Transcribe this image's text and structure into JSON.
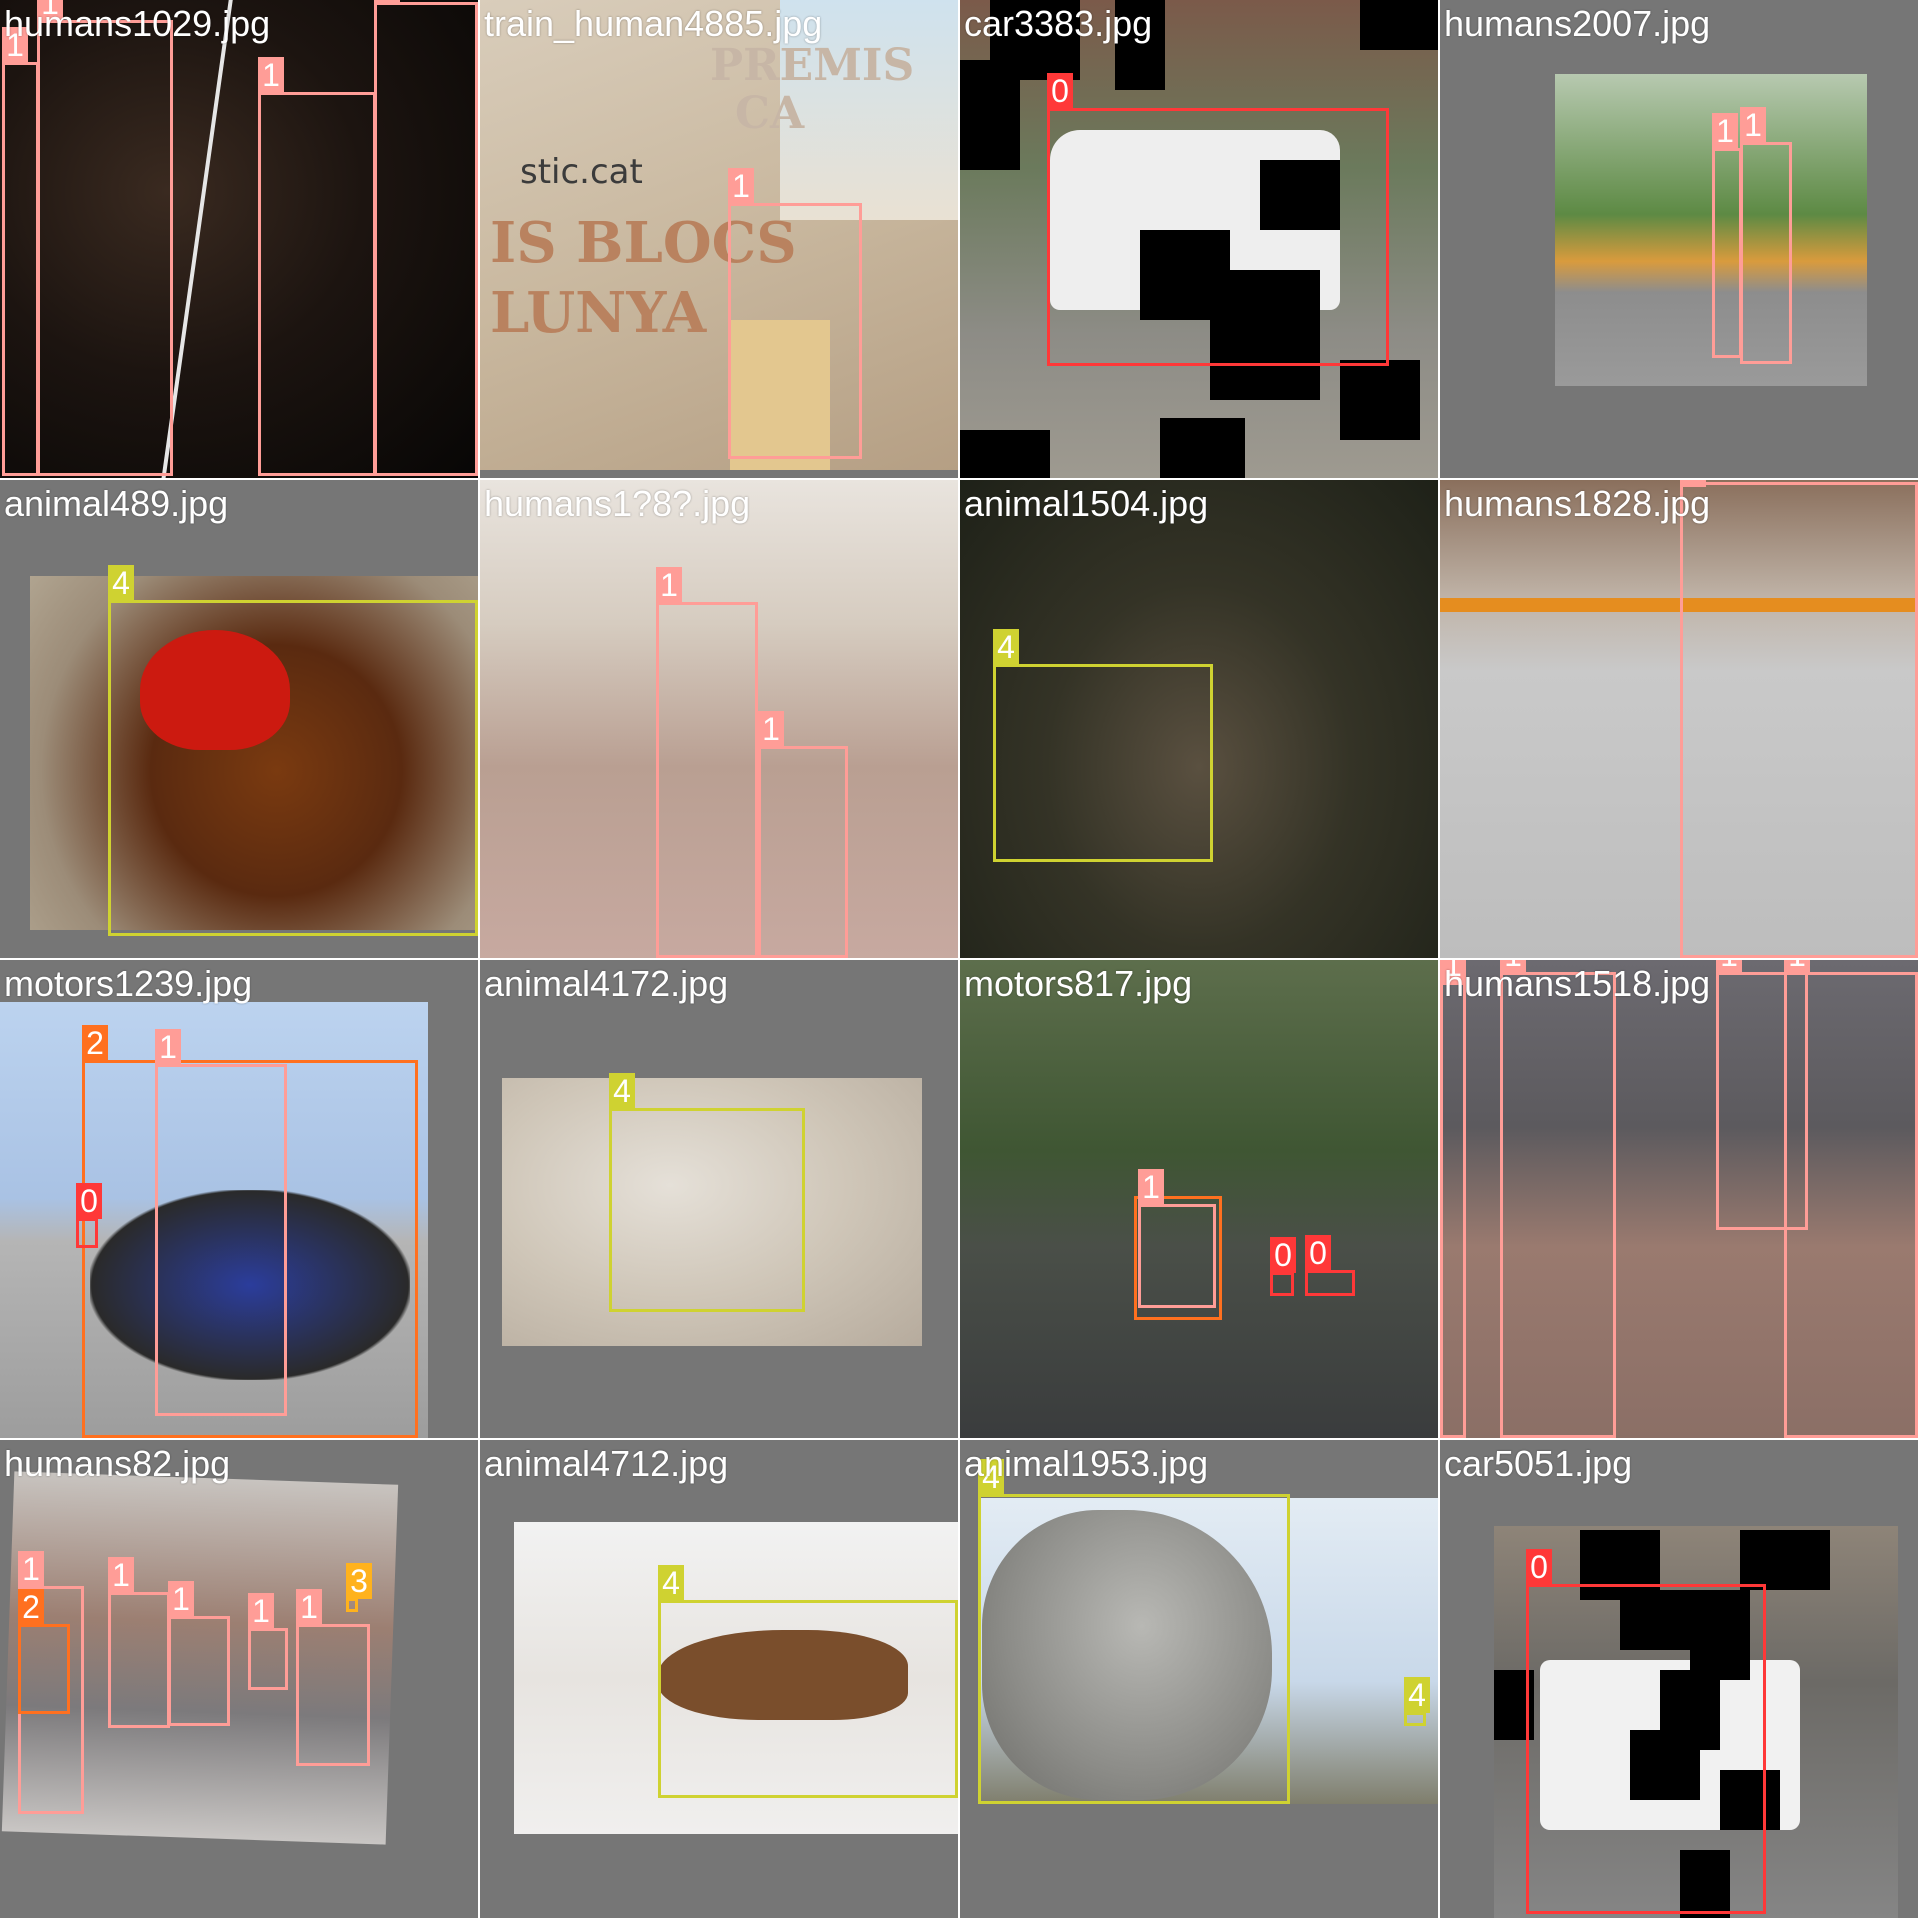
{
  "class_colors": {
    "0": "#ff3838",
    "1": "#ff9d97",
    "2": "#ff701f",
    "3": "#ffb21d",
    "4": "#cfd231"
  },
  "tiles": [
    {
      "filename": "humans1029.jpg",
      "scene": "night-street-people",
      "labels": [
        "1",
        "1",
        "1",
        "1"
      ]
    },
    {
      "filename": "train_human4885.jpg",
      "scene": "presenter-at-podium",
      "labels": [
        "1"
      ],
      "signage": [
        "stic.cat",
        "IS BLOCS",
        "LUNYA",
        "PREMIS",
        "CA"
      ]
    },
    {
      "filename": "car3383.jpg",
      "scene": "white-van-with-cutout-masks",
      "labels": [
        "0"
      ]
    },
    {
      "filename": "humans2007.jpg",
      "scene": "two-pedestrians-road",
      "labels": [
        "1",
        "1"
      ]
    },
    {
      "filename": "animal489.jpg",
      "scene": "rooster-closeup",
      "labels": [
        "4"
      ]
    },
    {
      "filename": "humans1?8?.jpg",
      "scene": "street-old-man-child",
      "labels": [
        "1",
        "1"
      ]
    },
    {
      "filename": "animal1504.jpg",
      "scene": "fox-in-forest",
      "labels": [
        "4"
      ]
    },
    {
      "filename": "humans1828.jpg",
      "scene": "woman-walking-street",
      "labels": [
        "1"
      ]
    },
    {
      "filename": "motors1239.jpg",
      "scene": "man-on-motorcycle",
      "labels": [
        "2",
        "1",
        "0"
      ]
    },
    {
      "filename": "animal4172.jpg",
      "scene": "ram-lying-on-rock",
      "labels": [
        "4"
      ]
    },
    {
      "filename": "motors817.jpg",
      "scene": "scooter-rider-forest-road",
      "labels": [
        "1",
        "0",
        "0"
      ]
    },
    {
      "filename": "humans1518.jpg",
      "scene": "people-walking-pavement",
      "labels": [
        "1",
        "1",
        "1",
        "1"
      ]
    },
    {
      "filename": "humans82.jpg",
      "scene": "crosswalk-crowd",
      "labels": [
        "1",
        "2",
        "1",
        "1",
        "1",
        "1",
        "3"
      ]
    },
    {
      "filename": "animal4712.jpg",
      "scene": "deer-in-snow",
      "labels": [
        "4"
      ]
    },
    {
      "filename": "animal1953.jpg",
      "scene": "horse-head-sky",
      "labels": [
        "4",
        "4"
      ]
    },
    {
      "filename": "car5051.jpg",
      "scene": "police-car-with-cutout-masks",
      "labels": [
        "0"
      ]
    }
  ]
}
